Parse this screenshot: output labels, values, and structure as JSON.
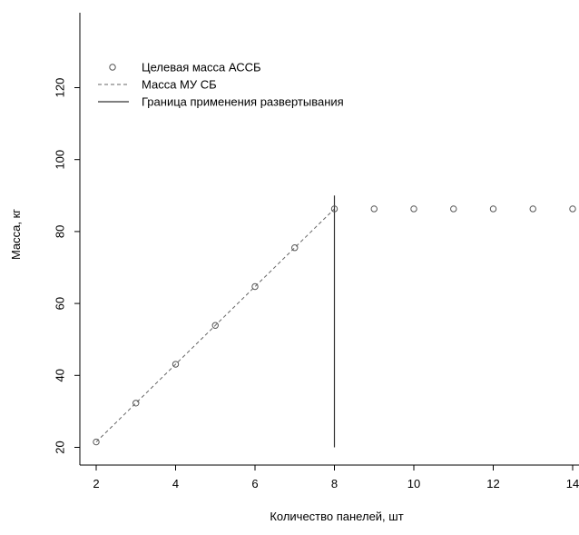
{
  "chart_data": {
    "type": "scatter",
    "title": "",
    "xlabel": "Количество панелей, шт",
    "ylabel": "Масса, кг",
    "xlim": [
      2,
      14
    ],
    "ylim": [
      20,
      120
    ],
    "x_ticks": [
      2,
      4,
      6,
      8,
      10,
      12,
      14
    ],
    "y_ticks": [
      20,
      40,
      60,
      80,
      100,
      120
    ],
    "grid": false,
    "legend_position": "top-left",
    "series": [
      {
        "name": "Целевая масса АССБ",
        "kind": "points",
        "x": [
          2,
          3,
          4,
          5,
          6,
          7,
          8,
          9,
          10,
          11,
          12,
          13,
          14
        ],
        "y": [
          21.5,
          32.3,
          43.1,
          53.9,
          64.7,
          75.5,
          86.3,
          86.3,
          86.3,
          86.3,
          86.3,
          86.3,
          86.3
        ]
      },
      {
        "name": "Масса МУ СБ",
        "kind": "dashed-line",
        "x": [
          2,
          3,
          4,
          5,
          6,
          7,
          8
        ],
        "y": [
          21.5,
          32.3,
          43.1,
          53.9,
          64.7,
          75.5,
          86.3
        ]
      },
      {
        "name": "Граница применения развертывания",
        "kind": "vertical-line",
        "x": 8,
        "y_range": [
          20,
          90
        ]
      }
    ]
  }
}
